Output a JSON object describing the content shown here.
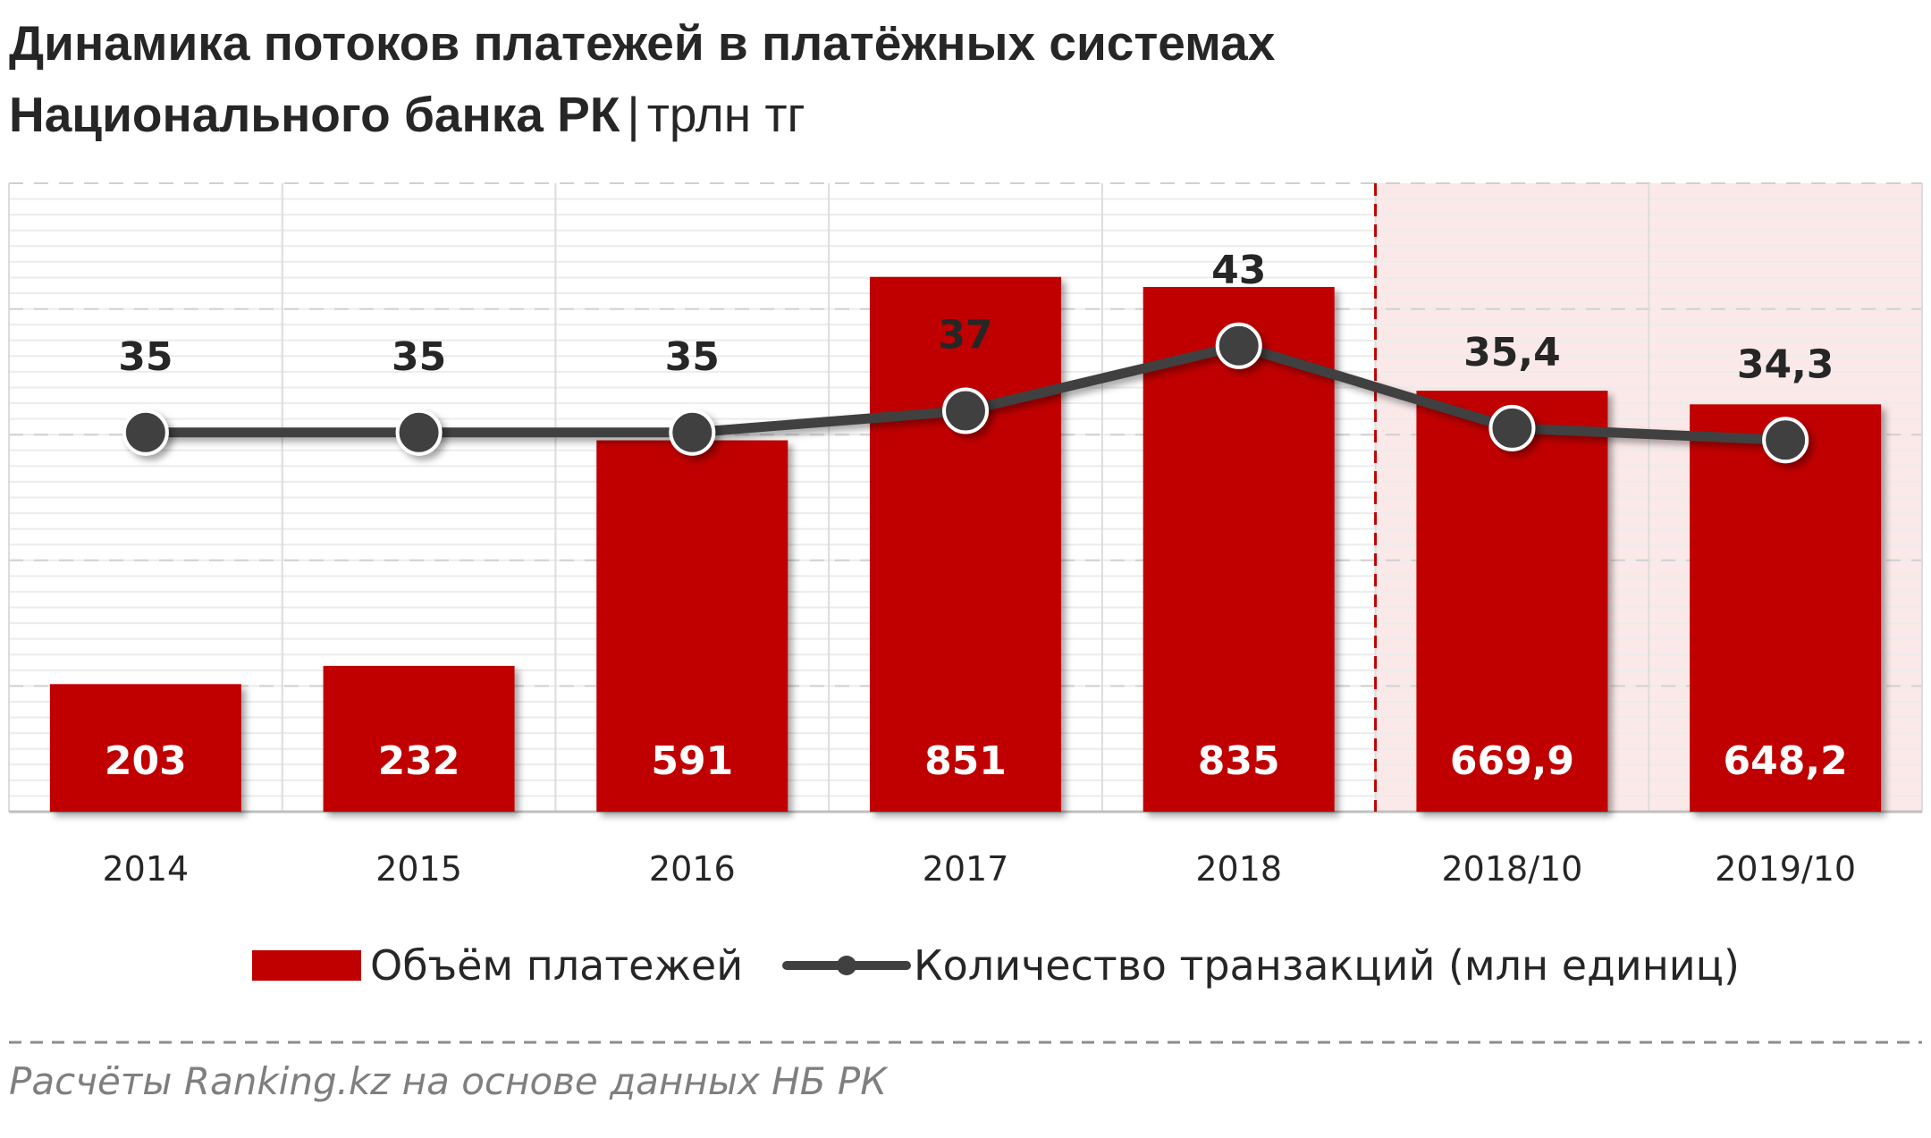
{
  "title": {
    "line1": "Динамика потоков платежей  в платёжных  системах",
    "line2": "Национального банка РК",
    "separator": "|",
    "unit": "трлн тг"
  },
  "source": "Расчёты Ranking.kz на основе данных  НБ РК",
  "colors": {
    "bar": "#c00000",
    "line": "#404040",
    "highlight_bg": "#fbe9e9",
    "divider": "#c00000"
  },
  "chart_data": {
    "type": "bar",
    "categories": [
      "2014",
      "2015",
      "2016",
      "2017",
      "2018",
      "2018/10",
      "2019/10"
    ],
    "highlighted_categories": [
      "2018/10",
      "2019/10"
    ],
    "series": [
      {
        "name": "Объём платежей",
        "type": "bar",
        "values": [
          203,
          232,
          591,
          851,
          835,
          669.9,
          648.2
        ],
        "labels": [
          "203",
          "232",
          "591",
          "851",
          "835",
          "669,9",
          "648,2"
        ]
      },
      {
        "name": "Количество транзакций (млн единиц)",
        "type": "line",
        "values": [
          35,
          35,
          35,
          37,
          43,
          35.4,
          34.3
        ],
        "labels": [
          "35",
          "35",
          "35",
          "37",
          "43",
          "35,4",
          "34,3"
        ]
      }
    ],
    "ylim": [
      0,
      1000
    ],
    "y2lim": [
      0,
      58
    ],
    "grid": true,
    "legend": "bottom"
  }
}
